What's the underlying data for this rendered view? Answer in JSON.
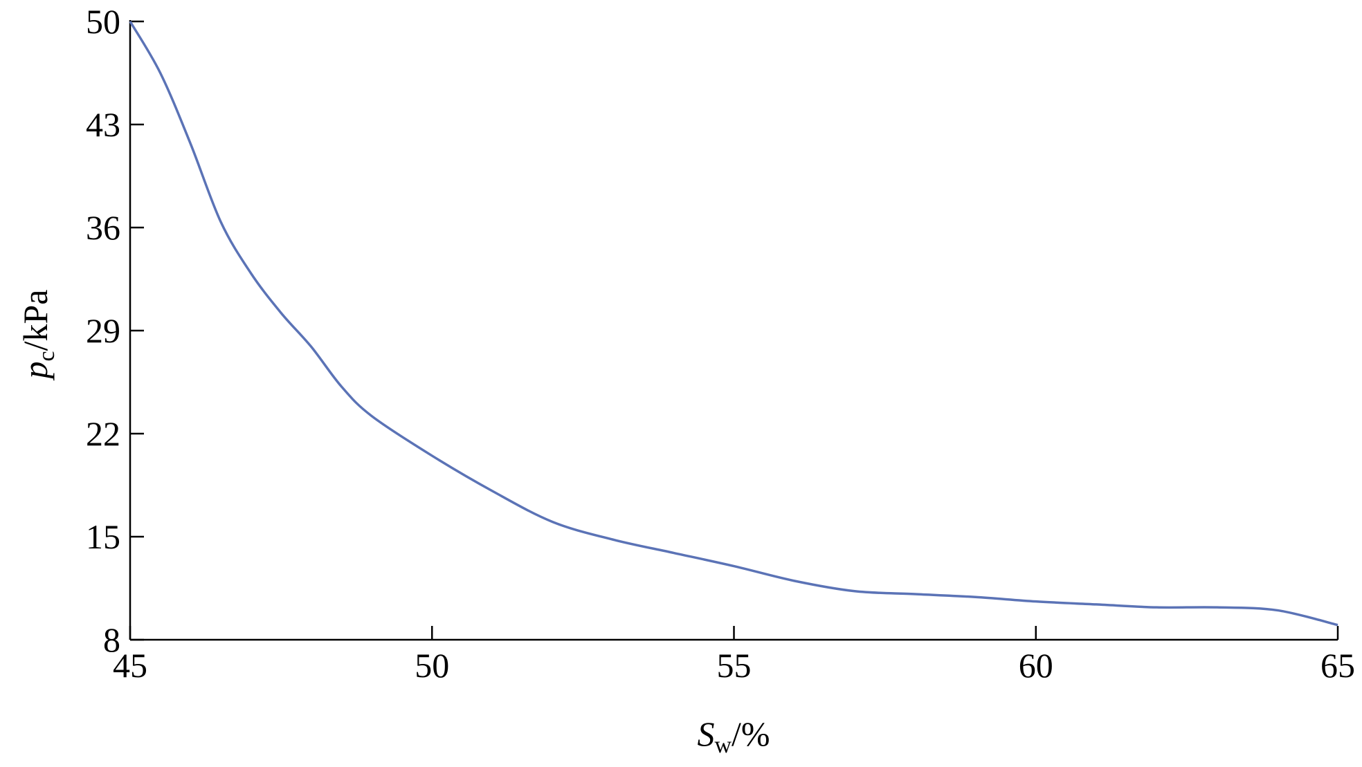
{
  "chart_data": {
    "type": "line",
    "x_label": {
      "symbol": "S",
      "subscript": "w",
      "unit": "/%"
    },
    "y_label": {
      "symbol": "p",
      "subscript": "c",
      "unit": "/kPa"
    },
    "series": [
      {
        "color": "#5b73b6",
        "x": [
          45,
          45.5,
          46,
          46.5,
          47,
          47.5,
          48,
          48.5,
          49,
          50,
          51,
          52,
          53,
          54,
          55,
          56,
          57,
          58,
          59,
          60,
          61,
          62,
          63,
          64,
          65
        ],
        "values": [
          50,
          46.5,
          41.7,
          36.4,
          32.9,
          30.2,
          27.9,
          25.2,
          23.2,
          20.5,
          18.1,
          16.0,
          14.8,
          13.9,
          13.0,
          12.0,
          11.3,
          11.1,
          10.9,
          10.6,
          10.4,
          10.2,
          10.2,
          10.0,
          9.0
        ]
      }
    ],
    "xlim": [
      45,
      65
    ],
    "xticks": [
      45,
      50,
      55,
      60,
      65
    ],
    "ylim": [
      8,
      50
    ],
    "yticks": [
      8,
      15,
      22,
      29,
      36,
      43,
      50
    ]
  }
}
